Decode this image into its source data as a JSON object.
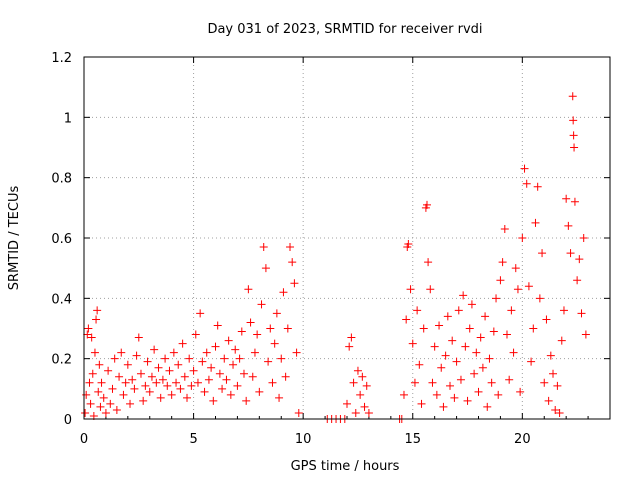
{
  "chart_data": {
    "type": "scatter",
    "title": "Day 031 of 2023, SRMTID for receiver rvdi",
    "xlabel": "GPS time / hours",
    "ylabel": "SRMTID / TECUs",
    "xlim": [
      0,
      24
    ],
    "ylim": [
      0,
      1.2
    ],
    "xticks": [
      0,
      5,
      10,
      15,
      20
    ],
    "xtick_labels": [
      "0",
      "5",
      "10",
      "15",
      "20"
    ],
    "yticks": [
      0,
      0.2,
      0.4,
      0.6,
      0.8,
      1.0,
      1.2
    ],
    "ytick_labels": [
      "0",
      "0.2",
      "0.4",
      "0.6",
      "0.8",
      "1",
      "1.2"
    ],
    "grid": true,
    "marker": "+",
    "color": "#ff0000",
    "series": [
      {
        "name": "SRMTID",
        "points": [
          [
            0.05,
            0.02
          ],
          [
            0.1,
            0.08
          ],
          [
            0.15,
            0.28
          ],
          [
            0.2,
            0.3
          ],
          [
            0.25,
            0.12
          ],
          [
            0.3,
            0.05
          ],
          [
            0.35,
            0.27
          ],
          [
            0.4,
            0.15
          ],
          [
            0.45,
            0.01
          ],
          [
            0.5,
            0.22
          ],
          [
            0.55,
            0.33
          ],
          [
            0.6,
            0.36
          ],
          [
            0.65,
            0.09
          ],
          [
            0.7,
            0.18
          ],
          [
            0.75,
            0.04
          ],
          [
            0.8,
            0.12
          ],
          [
            0.9,
            0.07
          ],
          [
            1.0,
            0.02
          ],
          [
            1.1,
            0.16
          ],
          [
            1.2,
            0.05
          ],
          [
            1.3,
            0.1
          ],
          [
            1.4,
            0.2
          ],
          [
            1.5,
            0.03
          ],
          [
            1.6,
            0.14
          ],
          [
            1.7,
            0.22
          ],
          [
            1.8,
            0.08
          ],
          [
            1.9,
            0.12
          ],
          [
            2.0,
            0.18
          ],
          [
            2.1,
            0.05
          ],
          [
            2.2,
            0.13
          ],
          [
            2.3,
            0.1
          ],
          [
            2.4,
            0.21
          ],
          [
            2.5,
            0.27
          ],
          [
            2.6,
            0.15
          ],
          [
            2.7,
            0.06
          ],
          [
            2.8,
            0.11
          ],
          [
            2.9,
            0.19
          ],
          [
            3.0,
            0.09
          ],
          [
            3.1,
            0.14
          ],
          [
            3.2,
            0.23
          ],
          [
            3.3,
            0.12
          ],
          [
            3.4,
            0.17
          ],
          [
            3.5,
            0.07
          ],
          [
            3.6,
            0.13
          ],
          [
            3.7,
            0.2
          ],
          [
            3.8,
            0.11
          ],
          [
            3.9,
            0.16
          ],
          [
            4.0,
            0.08
          ],
          [
            4.1,
            0.22
          ],
          [
            4.2,
            0.12
          ],
          [
            4.3,
            0.18
          ],
          [
            4.4,
            0.1
          ],
          [
            4.5,
            0.25
          ],
          [
            4.6,
            0.14
          ],
          [
            4.7,
            0.07
          ],
          [
            4.8,
            0.2
          ],
          [
            4.9,
            0.11
          ],
          [
            5.0,
            0.16
          ],
          [
            5.1,
            0.28
          ],
          [
            5.2,
            0.12
          ],
          [
            5.3,
            0.35
          ],
          [
            5.4,
            0.19
          ],
          [
            5.5,
            0.09
          ],
          [
            5.6,
            0.22
          ],
          [
            5.7,
            0.13
          ],
          [
            5.8,
            0.17
          ],
          [
            5.9,
            0.06
          ],
          [
            6.0,
            0.24
          ],
          [
            6.1,
            0.31
          ],
          [
            6.2,
            0.15
          ],
          [
            6.3,
            0.1
          ],
          [
            6.4,
            0.2
          ],
          [
            6.5,
            0.13
          ],
          [
            6.6,
            0.26
          ],
          [
            6.7,
            0.08
          ],
          [
            6.8,
            0.18
          ],
          [
            6.9,
            0.23
          ],
          [
            7.0,
            0.11
          ],
          [
            7.1,
            0.2
          ],
          [
            7.2,
            0.29
          ],
          [
            7.3,
            0.15
          ],
          [
            7.4,
            0.06
          ],
          [
            7.5,
            0.43
          ],
          [
            7.6,
            0.32
          ],
          [
            7.7,
            0.14
          ],
          [
            7.8,
            0.22
          ],
          [
            7.9,
            0.28
          ],
          [
            8.0,
            0.09
          ],
          [
            8.1,
            0.38
          ],
          [
            8.2,
            0.57
          ],
          [
            8.3,
            0.5
          ],
          [
            8.4,
            0.19
          ],
          [
            8.5,
            0.3
          ],
          [
            8.6,
            0.12
          ],
          [
            8.7,
            0.25
          ],
          [
            8.8,
            0.35
          ],
          [
            8.9,
            0.07
          ],
          [
            9.0,
            0.2
          ],
          [
            9.1,
            0.42
          ],
          [
            9.2,
            0.14
          ],
          [
            9.3,
            0.3
          ],
          [
            9.4,
            0.57
          ],
          [
            9.5,
            0.52
          ],
          [
            9.6,
            0.45
          ],
          [
            9.7,
            0.22
          ],
          [
            9.8,
            0.02
          ],
          [
            11.1,
            0.0
          ],
          [
            11.3,
            0.0
          ],
          [
            11.5,
            0.0
          ],
          [
            11.7,
            0.0
          ],
          [
            11.9,
            0.0
          ],
          [
            12.0,
            0.05
          ],
          [
            12.1,
            0.24
          ],
          [
            12.2,
            0.27
          ],
          [
            12.3,
            0.12
          ],
          [
            12.4,
            0.02
          ],
          [
            12.5,
            0.16
          ],
          [
            12.6,
            0.08
          ],
          [
            12.7,
            0.14
          ],
          [
            12.8,
            0.04
          ],
          [
            12.9,
            0.11
          ],
          [
            13.0,
            0.02
          ],
          [
            14.4,
            0.0
          ],
          [
            14.5,
            0.0
          ],
          [
            14.6,
            0.08
          ],
          [
            14.7,
            0.33
          ],
          [
            14.75,
            0.57
          ],
          [
            14.8,
            0.58
          ],
          [
            14.9,
            0.43
          ],
          [
            15.0,
            0.25
          ],
          [
            15.1,
            0.12
          ],
          [
            15.2,
            0.36
          ],
          [
            15.3,
            0.18
          ],
          [
            15.4,
            0.05
          ],
          [
            15.5,
            0.3
          ],
          [
            15.6,
            0.7
          ],
          [
            15.65,
            0.71
          ],
          [
            15.7,
            0.52
          ],
          [
            15.8,
            0.43
          ],
          [
            15.9,
            0.12
          ],
          [
            16.0,
            0.24
          ],
          [
            16.1,
            0.08
          ],
          [
            16.2,
            0.31
          ],
          [
            16.3,
            0.17
          ],
          [
            16.4,
            0.04
          ],
          [
            16.5,
            0.21
          ],
          [
            16.6,
            0.34
          ],
          [
            16.7,
            0.11
          ],
          [
            16.8,
            0.26
          ],
          [
            16.9,
            0.07
          ],
          [
            17.0,
            0.19
          ],
          [
            17.1,
            0.36
          ],
          [
            17.2,
            0.13
          ],
          [
            17.3,
            0.41
          ],
          [
            17.4,
            0.24
          ],
          [
            17.5,
            0.06
          ],
          [
            17.6,
            0.3
          ],
          [
            17.7,
            0.38
          ],
          [
            17.8,
            0.15
          ],
          [
            17.9,
            0.22
          ],
          [
            18.0,
            0.09
          ],
          [
            18.1,
            0.27
          ],
          [
            18.2,
            0.17
          ],
          [
            18.3,
            0.34
          ],
          [
            18.4,
            0.04
          ],
          [
            18.5,
            0.2
          ],
          [
            18.6,
            0.12
          ],
          [
            18.7,
            0.29
          ],
          [
            18.8,
            0.4
          ],
          [
            18.9,
            0.08
          ],
          [
            19.0,
            0.46
          ],
          [
            19.1,
            0.52
          ],
          [
            19.2,
            0.63
          ],
          [
            19.3,
            0.28
          ],
          [
            19.4,
            0.13
          ],
          [
            19.5,
            0.36
          ],
          [
            19.6,
            0.22
          ],
          [
            19.7,
            0.5
          ],
          [
            19.8,
            0.43
          ],
          [
            19.9,
            0.09
          ],
          [
            20.0,
            0.6
          ],
          [
            20.1,
            0.83
          ],
          [
            20.2,
            0.78
          ],
          [
            20.3,
            0.44
          ],
          [
            20.4,
            0.19
          ],
          [
            20.5,
            0.3
          ],
          [
            20.6,
            0.65
          ],
          [
            20.7,
            0.77
          ],
          [
            20.8,
            0.4
          ],
          [
            20.9,
            0.55
          ],
          [
            21.0,
            0.12
          ],
          [
            21.1,
            0.33
          ],
          [
            21.2,
            0.06
          ],
          [
            21.3,
            0.21
          ],
          [
            21.4,
            0.15
          ],
          [
            21.5,
            0.03
          ],
          [
            21.6,
            0.11
          ],
          [
            21.7,
            0.02
          ],
          [
            21.8,
            0.26
          ],
          [
            21.9,
            0.36
          ],
          [
            22.0,
            0.73
          ],
          [
            22.1,
            0.64
          ],
          [
            22.2,
            0.55
          ],
          [
            22.3,
            1.07
          ],
          [
            22.32,
            0.99
          ],
          [
            22.34,
            0.94
          ],
          [
            22.36,
            0.9
          ],
          [
            22.4,
            0.72
          ],
          [
            22.5,
            0.46
          ],
          [
            22.6,
            0.53
          ],
          [
            22.7,
            0.35
          ],
          [
            22.8,
            0.6
          ],
          [
            22.9,
            0.28
          ]
        ]
      }
    ]
  }
}
